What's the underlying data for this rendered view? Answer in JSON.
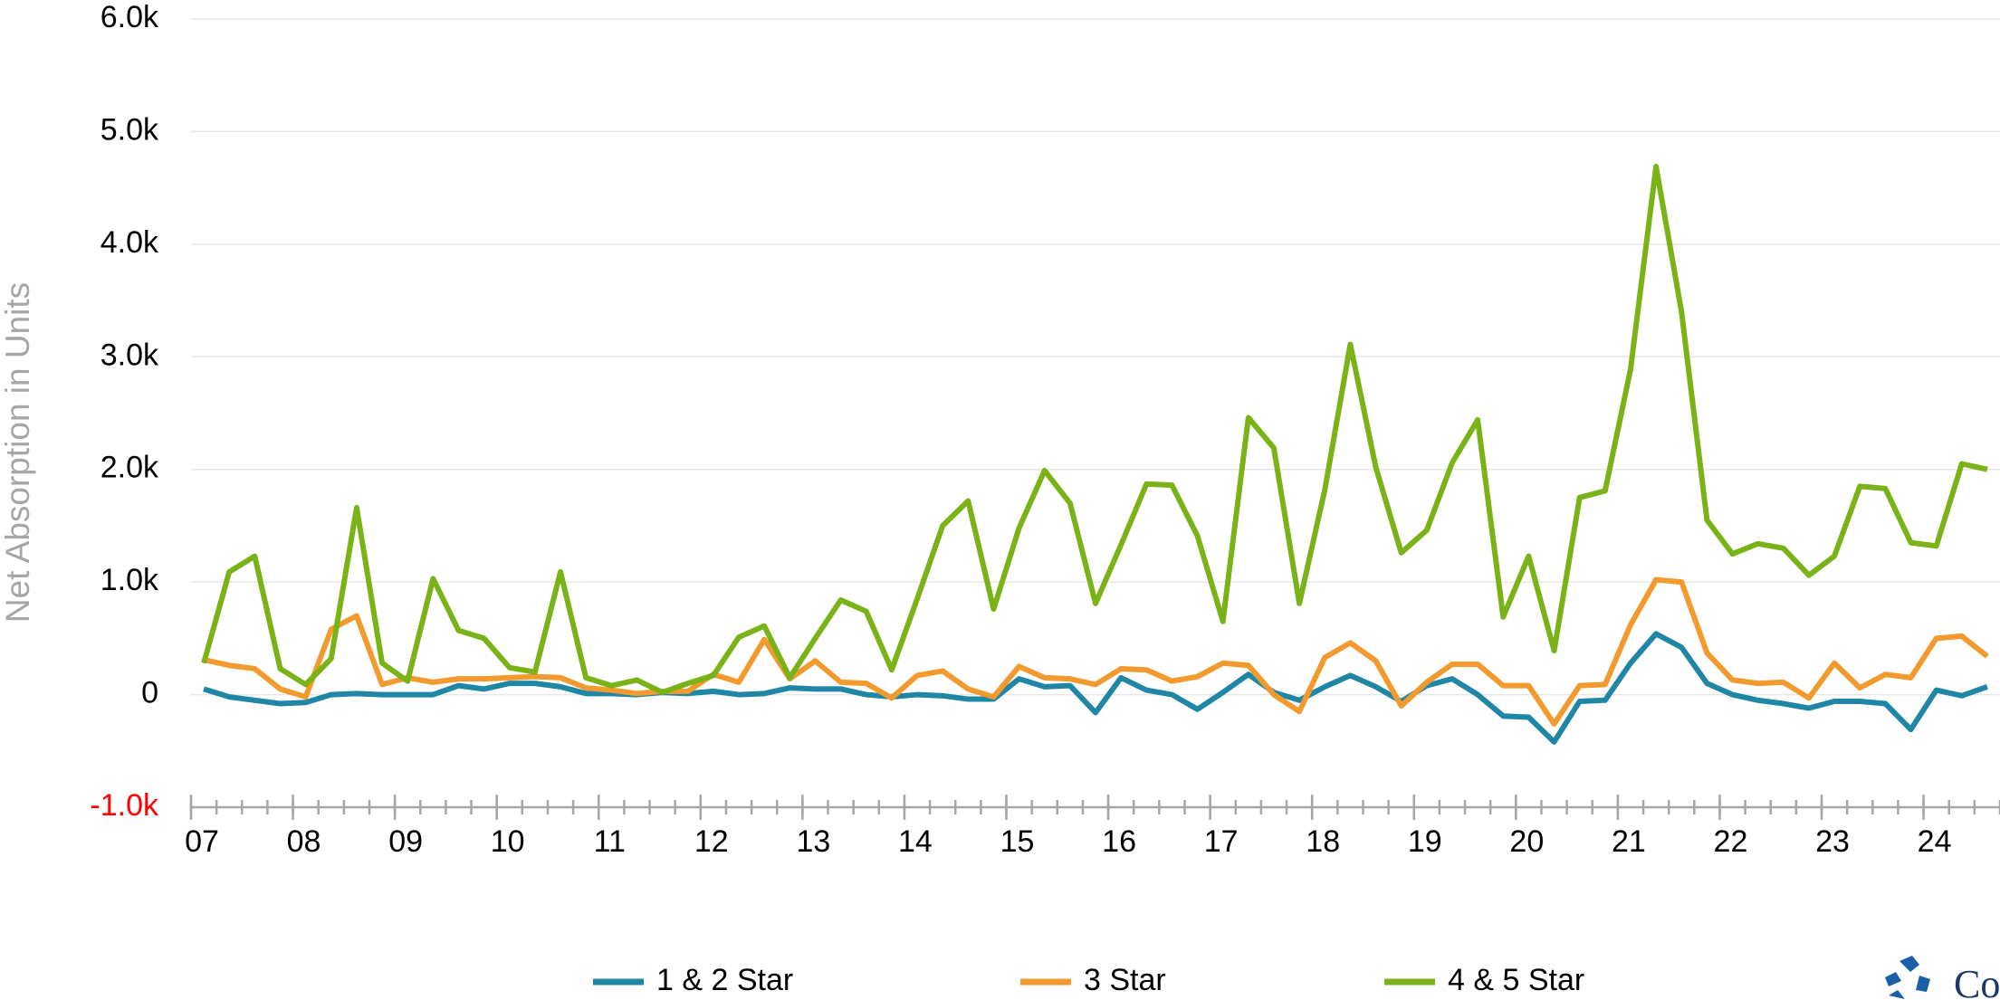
{
  "chart_data": {
    "type": "line",
    "y_label": "Net Absorption in Units",
    "x": [
      7.125,
      7.375,
      7.625,
      7.875,
      8.125,
      8.375,
      8.625,
      8.875,
      9.125,
      9.375,
      9.625,
      9.875,
      10.125,
      10.375,
      10.625,
      10.875,
      11.125,
      11.375,
      11.625,
      11.875,
      12.125,
      12.375,
      12.625,
      12.875,
      13.125,
      13.375,
      13.625,
      13.875,
      14.125,
      14.375,
      14.625,
      14.875,
      15.125,
      15.375,
      15.625,
      15.875,
      16.125,
      16.375,
      16.625,
      16.875,
      17.125,
      17.375,
      17.625,
      17.875,
      18.125,
      18.375,
      18.625,
      18.875,
      19.125,
      19.375,
      19.625,
      19.875,
      20.125,
      20.375,
      20.625,
      20.875,
      21.125,
      21.375,
      21.625,
      21.875,
      22.125,
      22.375,
      22.625,
      22.875,
      23.125,
      23.375,
      23.625,
      23.875,
      24.125,
      24.375,
      24.625
    ],
    "series": [
      {
        "name": "1 & 2 Star",
        "color": "#1f87a5",
        "values": [
          50,
          -20,
          -50,
          -80,
          -70,
          0,
          10,
          0,
          0,
          0,
          80,
          50,
          100,
          100,
          70,
          10,
          10,
          0,
          20,
          10,
          30,
          0,
          10,
          60,
          50,
          50,
          0,
          -20,
          0,
          -10,
          -40,
          -40,
          140,
          70,
          80,
          -160,
          150,
          40,
          0,
          -130,
          20,
          180,
          20,
          -50,
          70,
          170,
          70,
          -60,
          80,
          140,
          0,
          -190,
          -200,
          -420,
          -60,
          -50,
          280,
          540,
          420,
          100,
          0,
          -50,
          -80,
          -120,
          -60,
          -60,
          -80,
          -310,
          40,
          -10,
          70
        ]
      },
      {
        "name": "3 Star",
        "color": "#f39a2e",
        "values": [
          310,
          260,
          230,
          50,
          -20,
          580,
          700,
          90,
          150,
          110,
          140,
          140,
          150,
          160,
          150,
          60,
          40,
          10,
          30,
          30,
          180,
          110,
          490,
          140,
          300,
          110,
          100,
          -30,
          170,
          210,
          50,
          -20,
          250,
          150,
          140,
          90,
          230,
          220,
          120,
          160,
          280,
          260,
          0,
          -150,
          330,
          460,
          300,
          -100,
          110,
          270,
          270,
          80,
          80,
          -260,
          80,
          90,
          620,
          1020,
          1000,
          370,
          130,
          100,
          110,
          -30,
          280,
          60,
          180,
          150,
          500,
          520,
          340
        ]
      },
      {
        "name": "4 & 5 Star",
        "color": "#7ab317",
        "values": [
          280,
          1090,
          1230,
          230,
          90,
          320,
          1660,
          280,
          120,
          1030,
          570,
          500,
          240,
          200,
          1090,
          150,
          80,
          130,
          20,
          100,
          170,
          510,
          610,
          150,
          500,
          840,
          740,
          220,
          850,
          1500,
          1720,
          760,
          1480,
          1990,
          1700,
          810,
          1330,
          1870,
          1860,
          1410,
          650,
          2460,
          2190,
          810,
          1820,
          3110,
          2020,
          1260,
          1460,
          2060,
          2440,
          690,
          1230,
          390,
          1750,
          1810,
          2890,
          4690,
          3400,
          1550,
          1250,
          1340,
          1300,
          1060,
          1230,
          1850,
          1830,
          1350,
          1320,
          2050,
          2000
        ]
      }
    ],
    "xlim": [
      7,
      24.75
    ],
    "xticks": [
      {
        "value": 7,
        "label": "07"
      },
      {
        "value": 8,
        "label": "08"
      },
      {
        "value": 9,
        "label": "09"
      },
      10,
      11,
      12,
      13,
      14,
      15,
      16,
      17,
      18,
      19,
      20,
      21,
      22,
      23,
      24
    ],
    "ylim": [
      -1000,
      6000
    ],
    "yticks": [
      {
        "value": -1000,
        "label": "-1.0k"
      },
      0,
      {
        "value": 1000,
        "label": "1.0k"
      },
      {
        "value": 2000,
        "label": "2.0k"
      },
      {
        "value": 3000,
        "label": "3.0k"
      },
      {
        "value": 4000,
        "label": "4.0k"
      },
      {
        "value": 5000,
        "label": "5.0k"
      },
      {
        "value": 6000,
        "label": "6.0k"
      }
    ],
    "negative_tick_color": "#ff0000",
    "grid": true,
    "legend": "bottom",
    "logo_text": "Co"
  }
}
